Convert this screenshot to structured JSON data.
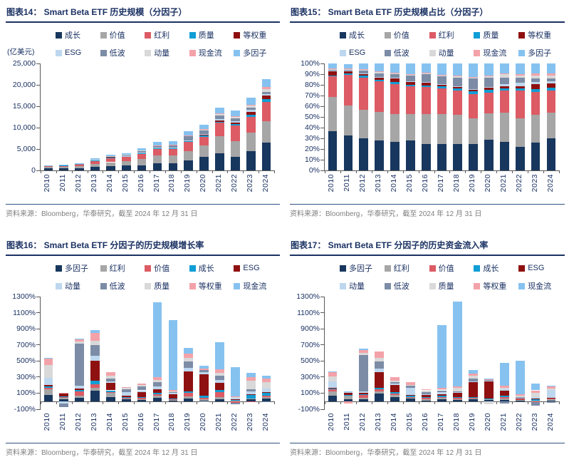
{
  "report": {
    "panels": [
      {
        "title": "图表14：  Smart Beta ETF 历史规模（分因子）",
        "unit": "(亿美元)",
        "source": "资料来源：Bloomberg，华泰研究，截至 2024 年 12 月 31 日"
      },
      {
        "title": "图表15：  Smart Beta ETF 历史规模占比（分因子）",
        "source": "资料来源：Bloomberg，华泰研究，截至 2024 年 12 月 31 日"
      },
      {
        "title": "图表16：  Smart Beta ETF 分因子的历史规模增长率",
        "source": "资料来源：Bloomberg，华泰研究，截至 2024 年 12 月 31 日"
      },
      {
        "title": "图表17：  Smart Beta ETF 分因子的历史资金流入率",
        "source": "资料来源：Bloomberg，华泰研究，截至 2024 年 12 月 31 日"
      }
    ],
    "colors": {
      "navy": "#17375e",
      "gray": "#a6a6a6",
      "red": "#dc5b64",
      "bright_blue": "#0f9ed5",
      "dark_red": "#8f1010",
      "pale_blue": "#bdd7ee",
      "slate": "#7c8ca6",
      "light_gray": "#d9d9d9",
      "pink": "#f4a2a9",
      "sky": "#86c2f0",
      "title_navy": "#1b3263",
      "source_gray": "#7f7f7f"
    }
  },
  "chart_data": [
    {
      "type": "bar",
      "stacked": true,
      "title": "Smart Beta ETF 历史规模（分因子）",
      "unit": "(亿美元)",
      "grid": false,
      "legend_position": "top",
      "categories": [
        "2010",
        "2011",
        "2012",
        "2013",
        "2014",
        "2015",
        "2016",
        "2017",
        "2018",
        "2019",
        "2020",
        "2021",
        "2022",
        "2023",
        "2024"
      ],
      "ylim": [
        0,
        25000
      ],
      "yticks": [
        25000,
        20000,
        15000,
        10000,
        5000,
        0
      ],
      "ytick_labels": [
        "25,000",
        "20,000",
        "15,000",
        "10,000",
        "5,000",
        "0"
      ],
      "series": [
        {
          "name": "成长",
          "color": "#17375e",
          "values": [
            420,
            450,
            510,
            780,
            960,
            1150,
            1250,
            1650,
            1700,
            2280,
            3130,
            4000,
            3100,
            4420,
            6420
          ]
        },
        {
          "name": "价值",
          "color": "#a6a6a6",
          "values": [
            390,
            380,
            460,
            740,
            960,
            1020,
            1450,
            1850,
            1840,
            2280,
            2650,
            4000,
            3800,
            4420,
            5140
          ]
        },
        {
          "name": "红利",
          "color": "#dc5b64",
          "values": [
            230,
            390,
            510,
            810,
            1010,
            1050,
            1280,
            1550,
            1560,
            2090,
            2100,
            3100,
            3590,
            3655,
            4390
          ]
        },
        {
          "name": "质量",
          "color": "#0f9ed5",
          "values": [
            10,
            15,
            25,
            30,
            55,
            60,
            75,
            130,
            135,
            230,
            270,
            220,
            280,
            425,
            640
          ]
        },
        {
          "name": "等权重",
          "color": "#8f1010",
          "values": [
            45,
            30,
            25,
            70,
            125,
            120,
            130,
            130,
            100,
            140,
            215,
            370,
            350,
            765,
            855
          ]
        },
        {
          "name": "ESG",
          "color": "#bdd7ee",
          "values": [
            5,
            5,
            5,
            10,
            10,
            15,
            15,
            20,
            25,
            45,
            80,
            300,
            420,
            425,
            430
          ]
        },
        {
          "name": "低波",
          "color": "#7c8ca6",
          "values": [
            5,
            5,
            50,
            85,
            145,
            205,
            380,
            460,
            545,
            930,
            920,
            810,
            630,
            510,
            535
          ]
        },
        {
          "name": "动量",
          "color": "#d9d9d9",
          "values": [
            15,
            10,
            10,
            40,
            20,
            40,
            50,
            65,
            100,
            95,
            215,
            520,
            350,
            510,
            640
          ]
        },
        {
          "name": "现金流",
          "color": "#f4a2a9",
          "values": [
            5,
            5,
            5,
            5,
            5,
            10,
            10,
            15,
            15,
            20,
            30,
            60,
            140,
            255,
            430
          ]
        },
        {
          "name": "多因子",
          "color": "#86c2f0",
          "values": [
            75,
            80,
            100,
            230,
            340,
            410,
            480,
            730,
            750,
            1120,
            1080,
            1330,
            1410,
            1615,
            1925
          ]
        }
      ]
    },
    {
      "type": "bar",
      "stacked": true,
      "stack_mode": "percent",
      "title": "Smart Beta ETF 历史规模占比（分因子）",
      "grid": false,
      "legend_position": "top",
      "categories": [
        "2010",
        "2011",
        "2012",
        "2013",
        "2014",
        "2015",
        "2016",
        "2017",
        "2018",
        "2019",
        "2020",
        "2021",
        "2022",
        "2023",
        "2024"
      ],
      "ylim": [
        0,
        100
      ],
      "yticks": [
        100,
        90,
        80,
        70,
        60,
        50,
        40,
        30,
        20,
        10,
        0
      ],
      "ytick_labels": [
        "100%",
        "90%",
        "80%",
        "70%",
        "60%",
        "50%",
        "40%",
        "30%",
        "20%",
        "10%",
        "0%"
      ],
      "series": [
        {
          "name": "成长",
          "color": "#17375e",
          "values": [
            36.5,
            33,
            30,
            28,
            26.5,
            28,
            24.5,
            25,
            25,
            24.5,
            29,
            27,
            22,
            26,
            30
          ]
        },
        {
          "name": "价值",
          "color": "#a6a6a6",
          "values": [
            32.5,
            28,
            27,
            26.5,
            26.5,
            25,
            28.5,
            28,
            27,
            24.5,
            24.5,
            27,
            27,
            26,
            24
          ]
        },
        {
          "name": "红利",
          "color": "#dc5b64",
          "values": [
            19,
            28.5,
            30,
            29,
            28,
            25.5,
            25,
            23.5,
            23,
            22.5,
            19.5,
            21,
            25.5,
            21.5,
            20.5
          ]
        },
        {
          "name": "质量",
          "color": "#0f9ed5",
          "values": [
            1,
            1,
            1.5,
            1,
            1.5,
            1.5,
            1.5,
            2,
            2,
            2.5,
            2.5,
            1.5,
            2,
            2.5,
            3
          ]
        },
        {
          "name": "等权重",
          "color": "#8f1010",
          "values": [
            4,
            2.5,
            1.5,
            2.5,
            3.5,
            3,
            2.5,
            2,
            1.5,
            1.5,
            2,
            2.5,
            2.5,
            4.5,
            4
          ]
        },
        {
          "name": "ESG",
          "color": "#bdd7ee",
          "values": [
            0.5,
            0.5,
            0.5,
            0.5,
            0.5,
            0.5,
            0.5,
            0.5,
            0.5,
            0.5,
            0.8,
            2,
            3,
            2.5,
            2
          ]
        },
        {
          "name": "低波",
          "color": "#7c8ca6",
          "values": [
            0.5,
            0.5,
            3,
            3,
            4,
            5,
            7.5,
            7,
            8,
            10,
            8.5,
            5.5,
            4.5,
            3,
            2.5
          ]
        },
        {
          "name": "动量",
          "color": "#d9d9d9",
          "values": [
            1,
            1,
            0.5,
            1.5,
            0.5,
            1,
            1,
            1,
            1.5,
            1,
            2,
            3.5,
            2.5,
            3,
            3
          ]
        },
        {
          "name": "现金流",
          "color": "#f4a2a9",
          "values": [
            0.5,
            0.5,
            0.5,
            0.5,
            0.5,
            0.5,
            0.5,
            0.5,
            0.5,
            0.5,
            0.2,
            0.5,
            1,
            1.5,
            2
          ]
        },
        {
          "name": "多因子",
          "color": "#86c2f0",
          "values": [
            4.5,
            4,
            5.5,
            7.5,
            8.5,
            10,
            8.5,
            10.5,
            11,
            12.5,
            11,
            9.5,
            10,
            9.5,
            9
          ]
        }
      ]
    },
    {
      "type": "bar",
      "stacked": true,
      "title": "Smart Beta ETF 分因子的历史规模增长率",
      "grid": false,
      "legend_position": "top",
      "categories": [
        "2010",
        "2011",
        "2012",
        "2013",
        "2014",
        "2015",
        "2016",
        "2017",
        "2018",
        "2019",
        "2020",
        "2021",
        "2022",
        "2023",
        "2024"
      ],
      "ylim": [
        -100,
        1300
      ],
      "yticks": [
        1300,
        1100,
        900,
        700,
        500,
        300,
        100,
        -100
      ],
      "ytick_labels": [
        "1300%",
        "1100%",
        "900%",
        "700%",
        "500%",
        "300%",
        "100%",
        "-100%"
      ],
      "series": [
        {
          "name": "多因子",
          "color": "#17375e",
          "values": [
            75,
            25,
            45,
            130,
            55,
            20,
            15,
            45,
            10,
            35,
            10,
            25,
            5,
            20,
            30
          ]
        },
        {
          "name": "红利",
          "color": "#a6a6a6",
          "values": [
            70,
            20,
            25,
            35,
            45,
            10,
            10,
            25,
            5,
            25,
            10,
            30,
            5,
            15,
            20
          ]
        },
        {
          "name": "价值",
          "color": "#dc5b64",
          "values": [
            20,
            10,
            55,
            45,
            15,
            10,
            20,
            20,
            10,
            40,
            25,
            60,
            -20,
            -15,
            15
          ]
        },
        {
          "name": "成长",
          "color": "#0f9ed5",
          "values": [
            15,
            5,
            15,
            45,
            20,
            15,
            10,
            15,
            10,
            20,
            20,
            25,
            5,
            45,
            40
          ]
        },
        {
          "name": "ESG",
          "color": "#8f1010",
          "values": [
            20,
            35,
            15,
            250,
            90,
            10,
            60,
            45,
            55,
            250,
            270,
            90,
            10,
            10,
            10
          ]
        },
        {
          "name": "动量",
          "color": "#bdd7ee",
          "values": [
            90,
            -30,
            40,
            60,
            25,
            45,
            20,
            30,
            10,
            45,
            30,
            35,
            15,
            35,
            40
          ]
        },
        {
          "name": "低波",
          "color": "#7c8ca6",
          "values": [
            0,
            -45,
            520,
            135,
            35,
            40,
            45,
            60,
            10,
            80,
            25,
            50,
            -15,
            25,
            -10
          ]
        },
        {
          "name": "质量",
          "color": "#d9d9d9",
          "values": [
            160,
            5,
            25,
            55,
            30,
            15,
            25,
            25,
            15,
            40,
            -15,
            40,
            10,
            105,
            80
          ]
        },
        {
          "name": "等权重",
          "color": "#f4a2a9",
          "values": [
            80,
            5,
            30,
            95,
            50,
            10,
            10,
            35,
            10,
            60,
            15,
            45,
            10,
            45,
            45
          ]
        },
        {
          "name": "现金流",
          "color": "#86c2f0",
          "values": [
            10,
            0,
            10,
            30,
            0,
            0,
            0,
            930,
            870,
            65,
            40,
            330,
            360,
            50,
            40
          ]
        }
      ]
    },
    {
      "type": "bar",
      "stacked": true,
      "title": "Smart Beta ETF 分因子的历史资金流入率",
      "grid": false,
      "legend_position": "top",
      "categories": [
        "2010",
        "2011",
        "2012",
        "2013",
        "2014",
        "2015",
        "2016",
        "2017",
        "2018",
        "2019",
        "2020",
        "2021",
        "2022",
        "2023",
        "2024"
      ],
      "ylim": [
        -100,
        1300
      ],
      "yticks": [
        1300,
        1100,
        900,
        700,
        500,
        300,
        100,
        -100
      ],
      "ytick_labels": [
        "1300%",
        "1100%",
        "900%",
        "700%",
        "500%",
        "300%",
        "100%",
        "-100%"
      ],
      "series": [
        {
          "name": "多因子",
          "color": "#17375e",
          "values": [
            65,
            20,
            25,
            95,
            50,
            30,
            10,
            25,
            15,
            20,
            15,
            15,
            5,
            5,
            10
          ]
        },
        {
          "name": "红利",
          "color": "#a6a6a6",
          "values": [
            55,
            45,
            20,
            25,
            30,
            15,
            15,
            15,
            10,
            10,
            5,
            15,
            10,
            5,
            10
          ]
        },
        {
          "name": "价值",
          "color": "#dc5b64",
          "values": [
            25,
            10,
            30,
            30,
            15,
            10,
            15,
            15,
            15,
            15,
            10,
            25,
            10,
            -15,
            10
          ]
        },
        {
          "name": "成长",
          "color": "#0f9ed5",
          "values": [
            15,
            5,
            10,
            15,
            20,
            10,
            10,
            10,
            10,
            10,
            5,
            15,
            5,
            15,
            10
          ]
        },
        {
          "name": "ESG",
          "color": "#8f1010",
          "values": [
            10,
            25,
            15,
            195,
            85,
            10,
            25,
            25,
            50,
            180,
            215,
            60,
            5,
            10,
            5
          ]
        },
        {
          "name": "动量",
          "color": "#bdd7ee",
          "values": [
            80,
            5,
            25,
            45,
            20,
            95,
            15,
            25,
            10,
            15,
            5,
            20,
            10,
            20,
            95
          ]
        },
        {
          "name": "低波",
          "color": "#7c8ca6",
          "values": [
            0,
            0,
            450,
            90,
            20,
            20,
            20,
            20,
            15,
            30,
            5,
            -25,
            5,
            -40,
            -20
          ]
        },
        {
          "name": "质量",
          "color": "#d9d9d9",
          "values": [
            60,
            10,
            25,
            45,
            15,
            15,
            25,
            15,
            40,
            40,
            -35,
            20,
            20,
            50,
            20
          ]
        },
        {
          "name": "等权重",
          "color": "#f4a2a9",
          "values": [
            50,
            -25,
            40,
            75,
            40,
            30,
            15,
            20,
            15,
            25,
            10,
            25,
            15,
            30,
            25
          ]
        },
        {
          "name": "现金流",
          "color": "#86c2f0",
          "values": [
            10,
            5,
            10,
            0,
            0,
            0,
            0,
            780,
            1060,
            45,
            15,
            280,
            415,
            85,
            10
          ]
        }
      ]
    }
  ]
}
